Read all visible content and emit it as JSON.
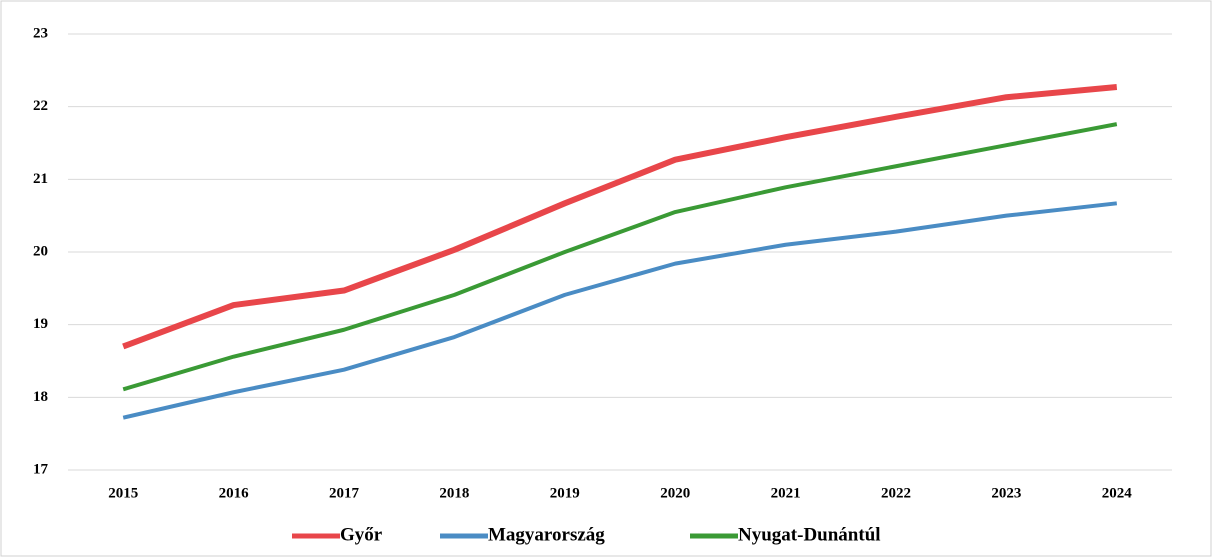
{
  "chart_data": {
    "type": "line",
    "categories": [
      "2015",
      "2016",
      "2017",
      "2018",
      "2019",
      "2020",
      "2021",
      "2022",
      "2023",
      "2024"
    ],
    "series": [
      {
        "name": "Győr",
        "color": "#e8464a",
        "values": [
          18.7,
          19.27,
          19.47,
          20.03,
          20.67,
          21.27,
          21.58,
          21.86,
          22.13,
          22.27
        ]
      },
      {
        "name": "Magyarország",
        "color": "#4a8cc4",
        "values": [
          17.72,
          18.07,
          18.38,
          18.83,
          19.41,
          19.84,
          20.1,
          20.28,
          20.5,
          20.67
        ]
      },
      {
        "name": "Nyugat-Dunántúl",
        "color": "#3a9a35",
        "values": [
          18.11,
          18.56,
          18.93,
          19.41,
          20.0,
          20.55,
          20.89,
          21.18,
          21.47,
          21.76
        ]
      }
    ],
    "ylim": [
      17,
      23
    ],
    "yticks": [
      17,
      18,
      19,
      20,
      21,
      22,
      23
    ],
    "grid": true,
    "legend": "bottom"
  }
}
